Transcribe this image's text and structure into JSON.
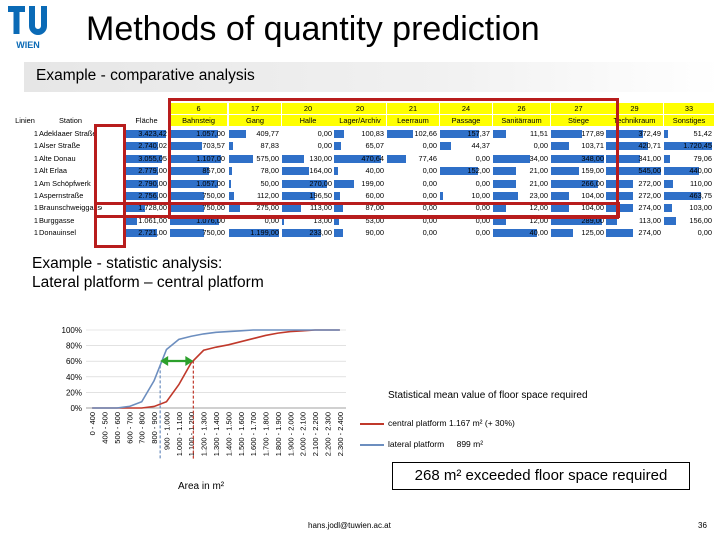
{
  "slide": {
    "title": "Methods of quantity prediction",
    "subtitle1": "Example - comparative analysis",
    "subtitle2_line1": "Example - statistic analysis:",
    "subtitle2_line2": "Lateral platform – central platform",
    "legend_title": "Statistical mean value of floor space required",
    "legend_central_label": "central platform",
    "legend_central_value": "1.167 m²   (+ 30%)",
    "legend_lateral_label": "lateral platform",
    "legend_lateral_value": "899 m²",
    "area_label": "Area in m²",
    "callout": "268 m² exceeded floor space required",
    "email": "hans.jodl@tuwien.ac.at",
    "page_number": "36",
    "logo_text": "WIEN",
    "colors": {
      "bar_blue": "#2f70c8",
      "highlight_red": "#b81d1d",
      "header_yellow": "#ffff00",
      "arrow_green": "#2ca02c"
    }
  },
  "table": {
    "codes": [
      "",
      "",
      "",
      "6",
      "17",
      "20",
      "20",
      "21",
      "24",
      "26",
      "27",
      "29",
      "33"
    ],
    "headers": [
      "Linien",
      "Station",
      "Fläche",
      "Bahnsteig",
      "Gang",
      "Halle",
      "Lager/Archiv",
      "Leerraum",
      "Passage",
      "Sanitärraum",
      "Stiege",
      "Technikraum",
      "Sonstiges"
    ],
    "rows": [
      [
        "1",
        "Adeklaaer Straße",
        "3.423,42",
        "1.057,00",
        "409,77",
        "0,00",
        "100,83",
        "102,66",
        "157,37",
        "11,51",
        "177,89",
        "372,49",
        "51,42"
      ],
      [
        "1",
        "Alser Straße",
        "2.740,02",
        "703,57",
        "87,83",
        "0,00",
        "65,07",
        "0,00",
        "44,37",
        "0,00",
        "103,71",
        "420,71",
        "1.720,45"
      ],
      [
        "1",
        "Alte Donau",
        "3.055,05",
        "1.107,00",
        "575,00",
        "130,00",
        "470,64",
        "77,46",
        "0,00",
        "34,00",
        "348,00",
        "341,00",
        "79,06"
      ],
      [
        "1",
        "Alt Erlaa",
        "2.779,00",
        "857,00",
        "78,00",
        "164,00",
        "40,00",
        "0,00",
        "152,00",
        "21,00",
        "159,00",
        "545,00",
        "440,00"
      ],
      [
        "1",
        "Am Schöpfwerk",
        "2.790,00",
        "1.057,00",
        "50,00",
        "270,00",
        "199,00",
        "0,00",
        "0,00",
        "21,00",
        "266,00",
        "272,00",
        "110,00"
      ],
      [
        "1",
        "Aspernstraße",
        "2.756,00",
        "750,00",
        "112,00",
        "196,50",
        "60,00",
        "0,00",
        "10,00",
        "23,00",
        "104,00",
        "272,00",
        "463,75"
      ],
      [
        "1",
        "Braunschweiggasse",
        "1.728,00",
        "750,00",
        "275,00",
        "113,00",
        "87,00",
        "0,00",
        "0,00",
        "12,00",
        "104,00",
        "274,00",
        "103,00"
      ],
      [
        "1",
        "Burggasse",
        "1.061,00",
        "1.076,00",
        "0,00",
        "13,00",
        "53,00",
        "0,00",
        "0,00",
        "12,00",
        "289,00",
        "113,00",
        "156,00"
      ],
      [
        "1",
        "Donauinsel",
        "2.721,00",
        "750,00",
        "1.199,00",
        "233,00",
        "90,00",
        "0,00",
        "0,00",
        "40,00",
        "125,00",
        "274,00",
        "0,00"
      ]
    ]
  },
  "chart_data": {
    "type": "line",
    "categories": [
      "0 - 400",
      "400 - 500",
      "500 - 600",
      "600 - 700",
      "700 - 800",
      "800 - 900",
      "900 - 1.000",
      "1.000 - 1.100",
      "1.100 - 1.200",
      "1.200 - 1.300",
      "1.300 - 1.400",
      "1.400 - 1.500",
      "1.500 - 1.600",
      "1.600 - 1.700",
      "1.700 - 1.800",
      "1.800 - 1.900",
      "1.900 - 2.000",
      "2.000 - 2.100",
      "2.100 - 2.200",
      "2.200 - 2.300",
      "2.300 - 2.400"
    ],
    "series": [
      {
        "name": "central platform",
        "color": "#c0392b",
        "values": [
          0,
          0,
          0,
          0,
          0,
          2,
          8,
          30,
          58,
          74,
          78,
          81,
          85,
          89,
          93,
          96,
          98,
          99,
          100,
          100,
          100
        ]
      },
      {
        "name": "lateral platform",
        "color": "#6c8ebf",
        "values": [
          0,
          0,
          0,
          2,
          8,
          35,
          75,
          88,
          92,
          95,
          97,
          98,
          99,
          100,
          100,
          100,
          100,
          100,
          100,
          100,
          100
        ]
      }
    ],
    "yticks": [
      "0%",
      "20%",
      "40%",
      "60%",
      "80%",
      "100%"
    ],
    "ylim": [
      0,
      100
    ],
    "markers": [
      {
        "series": "lateral platform",
        "x": 899
      },
      {
        "series": "central platform",
        "x": 1167
      }
    ]
  }
}
